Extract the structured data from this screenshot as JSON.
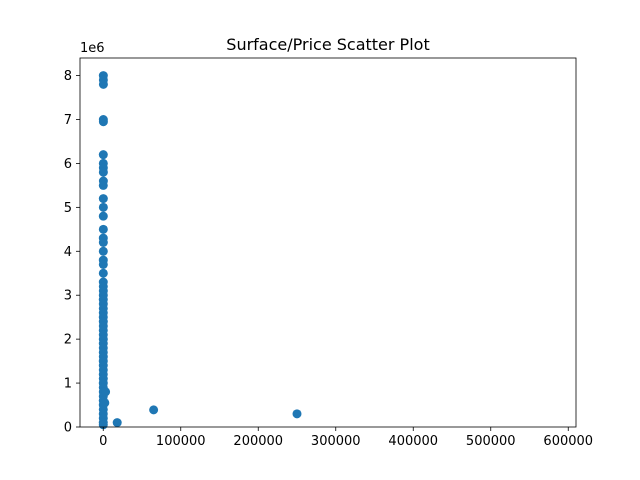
{
  "chart_data": {
    "type": "scatter",
    "title": "Surface/Price Scatter Plot",
    "xlabel": "",
    "ylabel": "",
    "y_exponent_label": "1e6",
    "xlim": [
      -30000,
      610000
    ],
    "ylim": [
      0,
      8400000
    ],
    "x_ticks": [
      0,
      100000,
      200000,
      300000,
      400000,
      500000,
      600000
    ],
    "x_tick_labels": [
      "0",
      "100000",
      "200000",
      "300000",
      "400000",
      "500000",
      "600000"
    ],
    "y_ticks": [
      0,
      1000000,
      2000000,
      3000000,
      4000000,
      5000000,
      6000000,
      7000000,
      8000000
    ],
    "y_tick_labels": [
      "0",
      "1",
      "2",
      "3",
      "4",
      "5",
      "6",
      "7",
      "8"
    ],
    "grid": false,
    "legend": "none",
    "marker_color": "#1f77b4",
    "series": [
      {
        "points": [
          [
            100,
            8000000
          ],
          [
            150,
            7900000
          ],
          [
            200,
            7800000
          ],
          [
            120,
            7000000
          ],
          [
            180,
            6950000
          ],
          [
            80,
            6200000
          ],
          [
            100,
            6000000
          ],
          [
            130,
            5900000
          ],
          [
            150,
            5800000
          ],
          [
            170,
            5600000
          ],
          [
            60,
            5500000
          ],
          [
            90,
            5200000
          ],
          [
            140,
            5000000
          ],
          [
            70,
            4800000
          ],
          [
            100,
            4500000
          ],
          [
            50,
            4300000
          ],
          [
            120,
            4200000
          ],
          [
            80,
            4000000
          ],
          [
            60,
            3800000
          ],
          [
            90,
            3700000
          ],
          [
            70,
            3500000
          ],
          [
            50,
            3300000
          ],
          [
            80,
            3200000
          ],
          [
            100,
            3100000
          ],
          [
            60,
            3000000
          ],
          [
            40,
            2900000
          ],
          [
            90,
            2800000
          ],
          [
            70,
            2700000
          ],
          [
            50,
            2600000
          ],
          [
            30,
            2500000
          ],
          [
            60,
            2400000
          ],
          [
            80,
            2300000
          ],
          [
            40,
            2200000
          ],
          [
            55,
            2100000
          ],
          [
            75,
            2000000
          ],
          [
            35,
            1900000
          ],
          [
            65,
            1800000
          ],
          [
            45,
            1700000
          ],
          [
            85,
            1600000
          ],
          [
            25,
            1500000
          ],
          [
            50,
            1400000
          ],
          [
            70,
            1300000
          ],
          [
            30,
            1200000
          ],
          [
            60,
            1100000
          ],
          [
            40,
            1000000
          ],
          [
            20,
            900000
          ],
          [
            55,
            800000
          ],
          [
            35,
            700000
          ],
          [
            45,
            600000
          ],
          [
            25,
            500000
          ],
          [
            60,
            400000
          ],
          [
            30,
            300000
          ],
          [
            50,
            200000
          ],
          [
            20,
            100000
          ],
          [
            40,
            50000
          ],
          [
            3000,
            800000
          ],
          [
            2000,
            550000
          ],
          [
            18000,
            100000
          ],
          [
            65000,
            390000
          ],
          [
            250000,
            300000
          ]
        ]
      }
    ]
  }
}
